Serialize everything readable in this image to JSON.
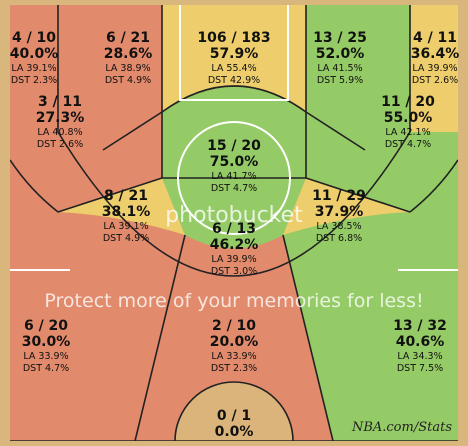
{
  "chart_data": {
    "type": "heatmap",
    "zones": [
      {
        "id": "left-corner-3",
        "made": 4,
        "attempts": 10,
        "pct": "40.0%",
        "la": "39.1%",
        "dst": "2.3%",
        "color": "#e2866a"
      },
      {
        "id": "left-baseline-mid",
        "made": 6,
        "attempts": 21,
        "pct": "28.6%",
        "la": "38.9%",
        "dst": "4.9%",
        "color": "#e2866a"
      },
      {
        "id": "paint",
        "made": 106,
        "attempts": 183,
        "pct": "57.9%",
        "la": "55.4%",
        "dst": "42.9%",
        "color": "#f0cf6a"
      },
      {
        "id": "right-baseline-mid",
        "made": 13,
        "attempts": 25,
        "pct": "52.0%",
        "la": "41.5%",
        "dst": "5.9%",
        "color": "#8fcc64"
      },
      {
        "id": "right-corner-3",
        "made": 4,
        "attempts": 11,
        "pct": "36.4%",
        "la": "39.9%",
        "dst": "2.6%",
        "color": "#f0cf6a"
      },
      {
        "id": "left-wing-mid",
        "made": 3,
        "attempts": 11,
        "pct": "27.3%",
        "la": "40.8%",
        "dst": "2.6%",
        "color": "#e2866a"
      },
      {
        "id": "right-wing-mid",
        "made": 11,
        "attempts": 20,
        "pct": "55.0%",
        "la": "42.1%",
        "dst": "4.7%",
        "color": "#8fcc64"
      },
      {
        "id": "free-throw",
        "made": 15,
        "attempts": 20,
        "pct": "75.0%",
        "la": "41.7%",
        "dst": "4.7%",
        "color": "#8fcc64"
      },
      {
        "id": "left-elbow",
        "made": 8,
        "attempts": 21,
        "pct": "38.1%",
        "la": "39.1%",
        "dst": "4.9%",
        "color": "#f0cf6a"
      },
      {
        "id": "right-elbow",
        "made": 11,
        "attempts": 29,
        "pct": "37.9%",
        "la": "38.5%",
        "dst": "6.8%",
        "color": "#f0cf6a"
      },
      {
        "id": "top-key",
        "made": 6,
        "attempts": 13,
        "pct": "46.2%",
        "la": "39.9%",
        "dst": "3.0%",
        "color": "#8fcc64"
      },
      {
        "id": "left-wing-3",
        "made": 6,
        "attempts": 20,
        "pct": "30.0%",
        "la": "33.9%",
        "dst": "4.7%",
        "color": "#e2866a"
      },
      {
        "id": "top-3",
        "made": 2,
        "attempts": 10,
        "pct": "20.0%",
        "la": "33.9%",
        "dst": "2.3%",
        "color": "#e2866a"
      },
      {
        "id": "right-wing-3",
        "made": 13,
        "attempts": 32,
        "pct": "40.6%",
        "la": "34.3%",
        "dst": "7.5%",
        "color": "#8fcc64"
      },
      {
        "id": "backcourt",
        "made": 0,
        "attempts": 1,
        "pct": "0.0%",
        "la": "",
        "dst": "",
        "color": "#d9b77c"
      }
    ],
    "la_prefix": "LA",
    "dst_prefix": "DST"
  },
  "watermark": {
    "line1": "Protect more of your memories for less!",
    "line2": "photobucket"
  },
  "brand_label": "NBA.com/Stats",
  "colors": {
    "hot": "#8fcc64",
    "avg": "#f0cf6a",
    "cold": "#e2866a",
    "wood": "#d9b77c"
  }
}
